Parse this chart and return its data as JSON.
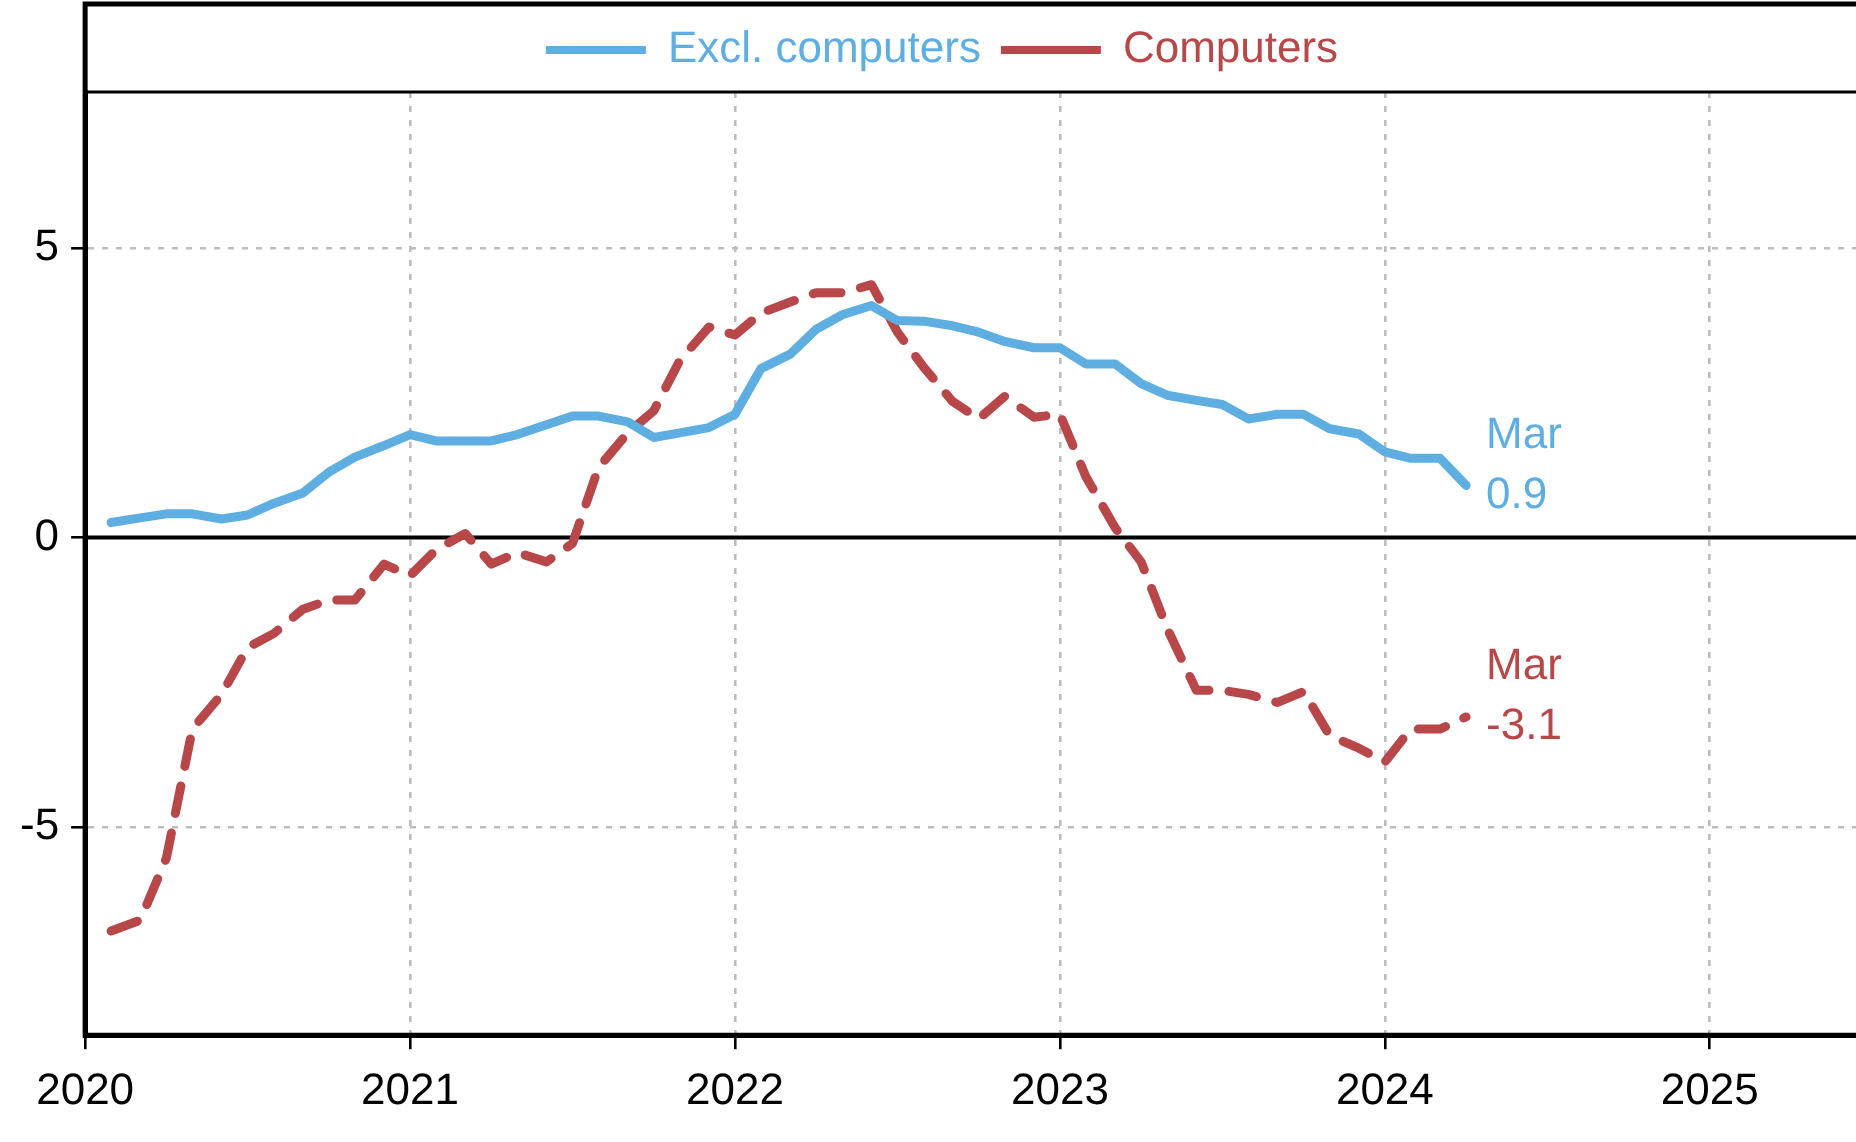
{
  "chart_data": {
    "type": "line",
    "x": [
      2020.08,
      2020.17,
      2020.25,
      2020.33,
      2020.42,
      2020.5,
      2020.58,
      2020.67,
      2020.75,
      2020.83,
      2020.92,
      2021,
      2021.08,
      2021.17,
      2021.25,
      2021.33,
      2021.42,
      2021.5,
      2021.58,
      2021.67,
      2021.75,
      2021.83,
      2021.92,
      2022,
      2022.08,
      2022.17,
      2022.25,
      2022.33,
      2022.42,
      2022.5,
      2022.58,
      2022.67,
      2022.75,
      2022.83,
      2022.92,
      2023,
      2023.08,
      2023.17,
      2023.25,
      2023.33,
      2023.42,
      2023.5,
      2023.58,
      2023.67,
      2023.75,
      2023.83,
      2023.92,
      2024,
      2024.08,
      2024.17,
      2024.25
    ],
    "series": [
      {
        "name": "Excl. computers",
        "color": "#5eaee2",
        "line_style": "solid",
        "values": [
          0.26,
          0.34,
          0.41,
          0.41,
          0.32,
          0.39,
          0.59,
          0.77,
          1.13,
          1.39,
          1.59,
          1.78,
          1.67,
          1.67,
          1.67,
          1.78,
          1.95,
          2.1,
          2.1,
          2.0,
          1.73,
          1.81,
          1.9,
          2.13,
          2.92,
          3.17,
          3.6,
          3.85,
          4.01,
          3.75,
          3.74,
          3.66,
          3.55,
          3.39,
          3.28,
          3.28,
          3.0,
          3.0,
          2.66,
          2.46,
          2.37,
          2.3,
          2.05,
          2.13,
          2.13,
          1.88,
          1.79,
          1.48,
          1.37,
          1.37,
          0.9
        ]
      },
      {
        "name": "Computers",
        "color": "#b8474a",
        "line_style": "dashed",
        "values": [
          -6.8,
          -6.61,
          -5.54,
          -3.31,
          -2.71,
          -1.9,
          -1.66,
          -1.24,
          -1.08,
          -1.08,
          -0.46,
          -0.66,
          -0.21,
          0.07,
          -0.46,
          -0.26,
          -0.42,
          -0.1,
          1.21,
          1.81,
          2.19,
          3.06,
          3.64,
          3.5,
          3.88,
          4.07,
          4.23,
          4.23,
          4.37,
          3.55,
          2.95,
          2.35,
          2.05,
          2.44,
          2.08,
          2.13,
          1.05,
          0.17,
          -0.42,
          -1.57,
          -2.64,
          -2.64,
          -2.71,
          -2.85,
          -2.66,
          -3.42,
          -3.64,
          -3.88,
          -3.31,
          -3.31,
          -3.1
        ]
      }
    ],
    "xlim": [
      2020,
      2025.45
    ],
    "xticks": [
      2020,
      2021,
      2022,
      2023,
      2024,
      2025
    ],
    "ylim": [
      -8.6,
      7.7
    ],
    "yticks": [
      -5,
      0,
      5
    ],
    "ref_lines": [
      {
        "axis": "y",
        "value": 0,
        "color": "#000000"
      }
    ],
    "annotations": [
      {
        "text": "Mar\n0.9",
        "x": 2024.25,
        "y": 0.9
      },
      {
        "text": "Mar\n-3.1",
        "x": 2024.25,
        "y": -3.1
      }
    ],
    "grid": true,
    "legend": "top",
    "marker": "none"
  }
}
